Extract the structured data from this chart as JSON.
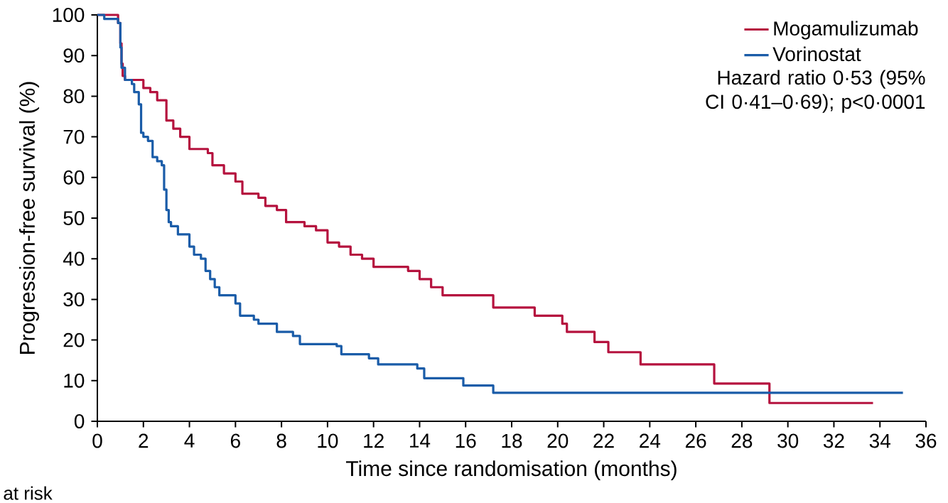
{
  "chart_data": {
    "type": "step",
    "xlabel": "Time since randomisation (months)",
    "ylabel": "Progression-free survival (%)",
    "xlim": [
      0,
      36
    ],
    "ylim": [
      0,
      100
    ],
    "xticks": [
      0,
      2,
      4,
      6,
      8,
      10,
      12,
      14,
      16,
      18,
      20,
      22,
      24,
      26,
      28,
      30,
      32,
      34,
      36
    ],
    "yticks": [
      0,
      10,
      20,
      30,
      40,
      50,
      60,
      70,
      80,
      90,
      100
    ],
    "legend": "top right",
    "series": [
      {
        "name": "Mogamulizumab",
        "color": "#b5123e",
        "x": [
          0,
          0.8,
          0.9,
          1.0,
          1.05,
          1.1,
          1.2,
          2.0,
          2.3,
          2.6,
          3.0,
          3.3,
          3.6,
          4.0,
          4.8,
          5.0,
          5.5,
          6.0,
          6.3,
          7.0,
          7.3,
          7.8,
          8.2,
          9.0,
          9.5,
          10.0,
          10.5,
          11.0,
          11.5,
          12.0,
          13.5,
          14.0,
          14.5,
          15.0,
          17.2,
          19.0,
          20.2,
          20.4,
          21.6,
          22.2,
          23.6,
          26.8,
          29.2,
          33.7
        ],
        "values": [
          100,
          100,
          98,
          93,
          88,
          85,
          84,
          82,
          81,
          79,
          74,
          72,
          70,
          67,
          66,
          63,
          61,
          59,
          56,
          55,
          53,
          52,
          49,
          48,
          47,
          44,
          43,
          41,
          40,
          38,
          37,
          35,
          33,
          31,
          28,
          26,
          24,
          22,
          19.5,
          17,
          14,
          9.3,
          4.5,
          4.5
        ]
      },
      {
        "name": "Vorinostat",
        "color": "#1a5ca8",
        "x": [
          0,
          0.3,
          0.9,
          1.0,
          1.05,
          1.2,
          1.5,
          1.6,
          1.8,
          1.9,
          2.0,
          2.2,
          2.4,
          2.6,
          2.8,
          2.9,
          3.0,
          3.1,
          3.2,
          3.5,
          4.0,
          4.2,
          4.5,
          4.7,
          4.9,
          5.1,
          5.3,
          6.0,
          6.2,
          6.8,
          7.0,
          7.8,
          8.5,
          8.8,
          10.4,
          10.6,
          11.8,
          12.2,
          13.9,
          14.2,
          15.9,
          17.2,
          35
        ],
        "values": [
          100,
          99,
          98,
          92,
          87,
          84,
          83,
          81,
          78,
          71,
          70,
          69,
          65,
          64,
          63,
          57,
          52,
          49,
          48,
          46,
          43,
          41,
          40,
          37,
          35,
          33,
          31,
          29,
          26,
          25,
          24,
          22,
          21,
          19,
          18.5,
          16.5,
          15.5,
          14,
          13,
          10.6,
          8.8,
          7,
          7
        ]
      }
    ],
    "annotations": [
      "Hazard ratio 0·53 (95% CI 0·41–0·69); p<0·0001",
      "at risk"
    ]
  }
}
